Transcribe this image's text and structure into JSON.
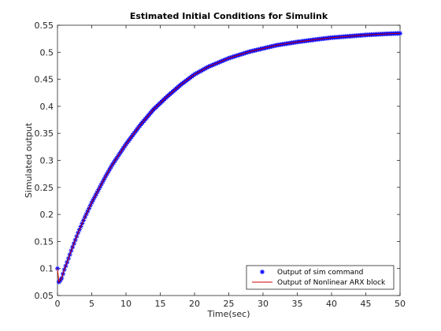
{
  "chart_data": {
    "type": "line",
    "title": "Estimated Initial Conditions for Simulink",
    "xlabel": "Time(sec)",
    "ylabel": "Simulated output",
    "xlim": [
      0,
      50
    ],
    "ylim": [
      0.05,
      0.55
    ],
    "xticks": [
      0,
      5,
      10,
      15,
      20,
      25,
      30,
      35,
      40,
      45,
      50
    ],
    "yticks": [
      0.05,
      0.1,
      0.15,
      0.2,
      0.25,
      0.3,
      0.35,
      0.4,
      0.45,
      0.5,
      0.55
    ],
    "xtick_labels": [
      "0",
      "5",
      "10",
      "15",
      "20",
      "25",
      "30",
      "35",
      "40",
      "45",
      "50"
    ],
    "ytick_labels": [
      "0.05",
      "0.1",
      "0.15",
      "0.2",
      "0.25",
      "0.3",
      "0.35",
      "0.4",
      "0.45",
      "0.5",
      "0.55"
    ],
    "grid": false,
    "legend_position": "bottom-right",
    "series": [
      {
        "name": "Output of sim command",
        "style": "markers",
        "marker": "asterisk",
        "color": "#0000ff",
        "x": [
          0,
          0.2,
          0.4,
          0.6,
          0.8,
          1.0,
          1.5,
          2,
          3,
          4,
          5,
          6,
          7,
          8,
          10,
          12,
          14,
          16,
          18,
          20,
          22,
          25,
          28,
          30,
          32,
          35,
          38,
          40,
          42,
          45,
          48,
          50
        ],
        "y": [
          0.1,
          0.075,
          0.078,
          0.082,
          0.09,
          0.098,
          0.115,
          0.133,
          0.166,
          0.195,
          0.222,
          0.246,
          0.27,
          0.292,
          0.33,
          0.364,
          0.394,
          0.418,
          0.44,
          0.459,
          0.473,
          0.489,
          0.501,
          0.507,
          0.513,
          0.519,
          0.524,
          0.527,
          0.529,
          0.532,
          0.534,
          0.535
        ]
      },
      {
        "name": "Output of Nonlinear ARX block",
        "style": "line",
        "color": "#cc0000",
        "x": [
          0,
          0.2,
          0.4,
          0.6,
          0.8,
          1.0,
          1.5,
          2,
          3,
          4,
          5,
          6,
          7,
          8,
          10,
          12,
          14,
          16,
          18,
          20,
          22,
          25,
          28,
          30,
          32,
          35,
          38,
          40,
          42,
          45,
          48,
          50
        ],
        "y": [
          0.1,
          0.075,
          0.078,
          0.082,
          0.09,
          0.098,
          0.115,
          0.133,
          0.166,
          0.195,
          0.222,
          0.246,
          0.27,
          0.292,
          0.33,
          0.364,
          0.394,
          0.418,
          0.44,
          0.459,
          0.473,
          0.489,
          0.501,
          0.507,
          0.513,
          0.519,
          0.524,
          0.527,
          0.529,
          0.532,
          0.534,
          0.535
        ]
      }
    ]
  }
}
